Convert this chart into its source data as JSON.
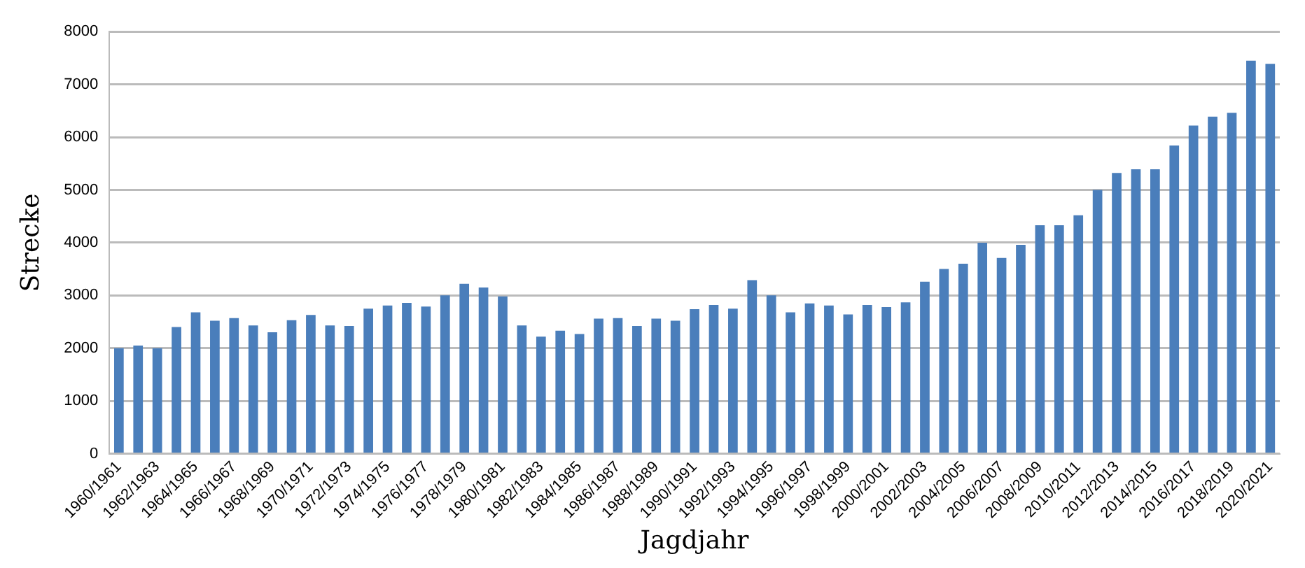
{
  "chart_data": {
    "type": "bar",
    "xlabel": "Jagdjahr",
    "ylabel": "Strecke",
    "categories": [
      "1960/1961",
      null,
      "1962/1963",
      null,
      "1964/1965",
      null,
      "1966/1967",
      null,
      "1968/1969",
      null,
      "1970/1971",
      null,
      "1972/1973",
      null,
      "1974/1975",
      null,
      "1976/1977",
      null,
      "1978/1979",
      null,
      "1980/1981",
      null,
      "1982/1983",
      null,
      "1984/1985",
      null,
      "1986/1987",
      null,
      "1988/1989",
      null,
      "1990/1991",
      null,
      "1992/1993",
      null,
      "1994/1995",
      null,
      "1996/1997",
      null,
      "1998/1999",
      null,
      "2000/2001",
      null,
      "2002/2003",
      null,
      "2004/2005",
      null,
      "2006/2007",
      null,
      "2008/2009",
      null,
      "2010/2011",
      null,
      "2012/2013",
      null,
      "2014/2015",
      null,
      "2016/2017",
      null,
      "2018/2019",
      null,
      "2020/2021"
    ],
    "values": [
      2000,
      2050,
      2000,
      2400,
      2680,
      2520,
      2570,
      2430,
      2300,
      2530,
      2630,
      2430,
      2420,
      2750,
      2810,
      2860,
      2790,
      3000,
      3220,
      3150,
      2980,
      2430,
      2220,
      2330,
      2270,
      2560,
      2570,
      2420,
      2560,
      2520,
      2740,
      2820,
      2750,
      3290,
      3000,
      2680,
      2850,
      2810,
      2640,
      2820,
      2780,
      2870,
      3260,
      3500,
      3600,
      4000,
      3710,
      3960,
      4330,
      4330,
      4520,
      5000,
      5320,
      5390,
      5390,
      5840,
      6220,
      6390,
      6460,
      7450,
      7390
    ],
    "color": "#4a7ebb",
    "ylim": [
      0,
      8000
    ],
    "yticks": [
      0,
      1000,
      2000,
      3000,
      4000,
      5000,
      6000,
      7000,
      8000
    ],
    "grid": "y",
    "legend": false
  }
}
